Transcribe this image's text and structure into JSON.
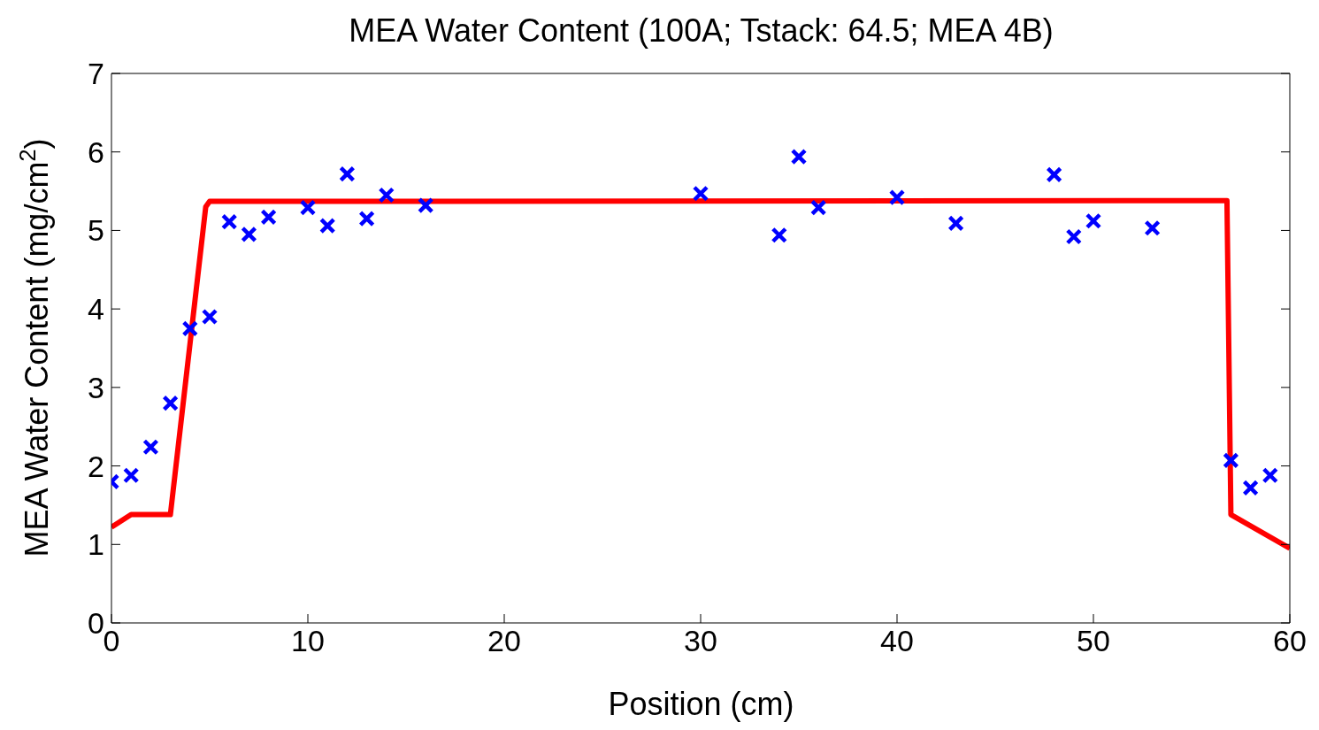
{
  "chart_data": {
    "type": "scatter",
    "title": "MEA Water Content (100A; Tstack: 64.5; MEA 4B)",
    "xlabel": "Position (cm)",
    "ylabel": "MEA Water Content (mg/cm$^{2}$)",
    "xlim": [
      0,
      60
    ],
    "xticks": [
      0,
      10,
      20,
      30,
      40,
      50,
      60
    ],
    "ylim": [
      0,
      7
    ],
    "yticks": [
      0,
      1,
      2,
      3,
      4,
      5,
      6,
      7
    ],
    "series": [
      {
        "type": "line",
        "color": "#ff0000",
        "line_style": "solid",
        "marker": "none",
        "x": [
          0,
          1,
          3,
          4.8,
          5,
          56.8,
          57,
          60
        ],
        "values": [
          1.22,
          1.38,
          1.38,
          5.3,
          5.37,
          5.38,
          1.38,
          0.95
        ]
      },
      {
        "color": "#0000ff",
        "marker": "cross",
        "x": [
          0,
          1,
          2,
          3,
          4,
          5,
          6,
          7,
          8,
          10,
          11,
          12,
          13,
          14,
          16,
          30,
          34,
          35,
          36,
          40,
          43,
          48,
          49,
          50,
          53,
          57,
          58,
          59
        ],
        "values": [
          1.8,
          1.88,
          2.24,
          2.8,
          3.75,
          3.9,
          5.11,
          4.95,
          5.17,
          5.29,
          5.06,
          5.72,
          5.15,
          5.45,
          5.32,
          5.47,
          4.94,
          5.94,
          5.29,
          5.42,
          5.09,
          5.71,
          4.92,
          5.12,
          5.03,
          2.07,
          1.72,
          1.88
        ]
      }
    ]
  }
}
